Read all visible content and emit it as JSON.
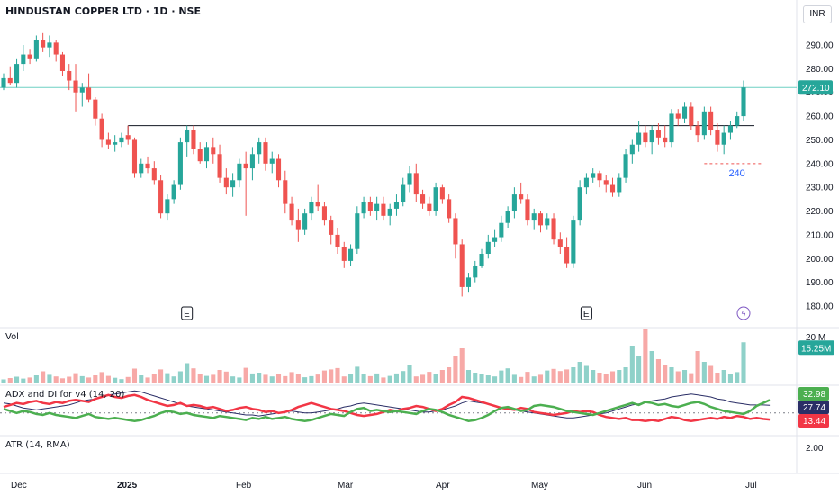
{
  "header": {
    "title": "HINDUSTAN COPPER LTD · 1D · NSE",
    "currency": "INR"
  },
  "chart_data": {
    "type": "candlestick",
    "title": "HINDUSTAN COPPER LTD · 1D · NSE",
    "x_ticks": [
      "Dec",
      "2025",
      "Feb",
      "Mar",
      "Apr",
      "May",
      "Jun",
      "Jul"
    ],
    "y_ticks": [
      "290.00",
      "280.00",
      "270.00",
      "260.00",
      "250.00",
      "240.00",
      "230.00",
      "220.00",
      "210.00",
      "200.00",
      "190.00",
      "180.00"
    ],
    "ylim": [
      175,
      297
    ],
    "last_price": 272.1,
    "last_price_label": "272.10",
    "resistance_level": 256,
    "support_level": 240,
    "support_label": "240",
    "earnings_markers": [
      "E",
      "E"
    ],
    "candles": [
      [
        272,
        278,
        271,
        276
      ],
      [
        276,
        281,
        273,
        274
      ],
      [
        274,
        284,
        272,
        282
      ],
      [
        282,
        290,
        279,
        286
      ],
      [
        286,
        288,
        282,
        284
      ],
      [
        284,
        294,
        283,
        292
      ],
      [
        292,
        295,
        287,
        289
      ],
      [
        289,
        294,
        285,
        291
      ],
      [
        291,
        292,
        283,
        286
      ],
      [
        286,
        287,
        277,
        279
      ],
      [
        279,
        282,
        271,
        275
      ],
      [
        275,
        282,
        262,
        270
      ],
      [
        270,
        274,
        264,
        272
      ],
      [
        272,
        278,
        266,
        267
      ],
      [
        267,
        268,
        256,
        259
      ],
      [
        259,
        261,
        247,
        250
      ],
      [
        250,
        253,
        246,
        248
      ],
      [
        248,
        252,
        245,
        249
      ],
      [
        249,
        253,
        247,
        251
      ],
      [
        252,
        256,
        248,
        250
      ],
      [
        250,
        251,
        234,
        236
      ],
      [
        236,
        242,
        234,
        240
      ],
      [
        240,
        243,
        236,
        238
      ],
      [
        238,
        241,
        231,
        233
      ],
      [
        233,
        235,
        217,
        219
      ],
      [
        219,
        227,
        216,
        225
      ],
      [
        225,
        233,
        223,
        231
      ],
      [
        231,
        251,
        229,
        249
      ],
      [
        249,
        256,
        243,
        254
      ],
      [
        254,
        256,
        244,
        246
      ],
      [
        246,
        249,
        240,
        241
      ],
      [
        241,
        249,
        238,
        247
      ],
      [
        247,
        251,
        240,
        244
      ],
      [
        244,
        248,
        232,
        234
      ],
      [
        234,
        238,
        227,
        230
      ],
      [
        230,
        236,
        226,
        233
      ],
      [
        233,
        242,
        230,
        240
      ],
      [
        240,
        245,
        218,
        238
      ],
      [
        238,
        247,
        233,
        244
      ],
      [
        244,
        251,
        240,
        249
      ],
      [
        249,
        251,
        237,
        240
      ],
      [
        240,
        245,
        236,
        242
      ],
      [
        242,
        244,
        230,
        233
      ],
      [
        233,
        237,
        219,
        223
      ],
      [
        223,
        226,
        214,
        216
      ],
      [
        216,
        221,
        207,
        212
      ],
      [
        212,
        221,
        210,
        219
      ],
      [
        219,
        226,
        216,
        224
      ],
      [
        224,
        231,
        220,
        222
      ],
      [
        222,
        224,
        214,
        216
      ],
      [
        216,
        218,
        206,
        210
      ],
      [
        210,
        213,
        202,
        205
      ],
      [
        205,
        207,
        196,
        199
      ],
      [
        199,
        206,
        197,
        204
      ],
      [
        204,
        222,
        202,
        219
      ],
      [
        219,
        226,
        217,
        224
      ],
      [
        224,
        226,
        218,
        220
      ],
      [
        220,
        226,
        216,
        223
      ],
      [
        223,
        226,
        216,
        218
      ],
      [
        218,
        223,
        214,
        221
      ],
      [
        221,
        227,
        218,
        224
      ],
      [
        224,
        234,
        222,
        231
      ],
      [
        231,
        239,
        228,
        236
      ],
      [
        236,
        240,
        224,
        227
      ],
      [
        227,
        229,
        221,
        223
      ],
      [
        223,
        226,
        218,
        220
      ],
      [
        220,
        232,
        218,
        230
      ],
      [
        230,
        231,
        223,
        225
      ],
      [
        225,
        227,
        215,
        217
      ],
      [
        217,
        219,
        200,
        206
      ],
      [
        206,
        208,
        184,
        188
      ],
      [
        188,
        194,
        186,
        192
      ],
      [
        192,
        199,
        190,
        197
      ],
      [
        197,
        204,
        196,
        202
      ],
      [
        202,
        210,
        200,
        207
      ],
      [
        207,
        212,
        205,
        209
      ],
      [
        209,
        218,
        207,
        215
      ],
      [
        215,
        222,
        213,
        220
      ],
      [
        220,
        230,
        217,
        227
      ],
      [
        227,
        232,
        223,
        225
      ],
      [
        225,
        227,
        214,
        216
      ],
      [
        216,
        221,
        212,
        219
      ],
      [
        219,
        220,
        211,
        214
      ],
      [
        214,
        219,
        212,
        217
      ],
      [
        217,
        219,
        206,
        208
      ],
      [
        208,
        211,
        202,
        205
      ],
      [
        205,
        209,
        196,
        198
      ],
      [
        198,
        218,
        196,
        216
      ],
      [
        216,
        233,
        214,
        230
      ],
      [
        230,
        236,
        227,
        234
      ],
      [
        234,
        238,
        232,
        236
      ],
      [
        236,
        237,
        230,
        233
      ],
      [
        233,
        235,
        228,
        231
      ],
      [
        231,
        234,
        226,
        228
      ],
      [
        228,
        236,
        226,
        234
      ],
      [
        234,
        246,
        232,
        244
      ],
      [
        244,
        250,
        240,
        248
      ],
      [
        248,
        258,
        245,
        253
      ],
      [
        253,
        256,
        247,
        249
      ],
      [
        249,
        256,
        244,
        254
      ],
      [
        254,
        257,
        248,
        251
      ],
      [
        251,
        256,
        247,
        249
      ],
      [
        249,
        263,
        247,
        261
      ],
      [
        261,
        263,
        256,
        259
      ],
      [
        259,
        266,
        257,
        264
      ],
      [
        264,
        266,
        254,
        256
      ],
      [
        256,
        258,
        249,
        252
      ],
      [
        252,
        264,
        250,
        262
      ],
      [
        262,
        264,
        252,
        254
      ],
      [
        254,
        257,
        245,
        248
      ],
      [
        248,
        256,
        244,
        253
      ],
      [
        253,
        258,
        250,
        256
      ],
      [
        256,
        262,
        255,
        260
      ],
      [
        260,
        275,
        258,
        272.1
      ]
    ],
    "volume": {
      "label": "Vol",
      "last_label": "15.25M",
      "scale_label": "20 M",
      "max": 20,
      "values": [
        1.5,
        2,
        2.5,
        1.8,
        2.2,
        3,
        4.5,
        3.2,
        2.6,
        1.9,
        2.5,
        3.8,
        2.7,
        2.2,
        3,
        4.2,
        2.8,
        2.1,
        1.6,
        2.4,
        5.5,
        3,
        2.2,
        3.5,
        5.2,
        3.8,
        2.6,
        4.5,
        7.5,
        5.6,
        3.4,
        2.8,
        3.2,
        5,
        4.4,
        2.6,
        2.2,
        5.8,
        3.7,
        4,
        3.2,
        2.6,
        3.4,
        2.7,
        4.2,
        3.6,
        2.3,
        2.7,
        3.3,
        4.8,
        5.2,
        5.7,
        2.6,
        3.6,
        6.2,
        3.5,
        2.7,
        3.7,
        2.2,
        2.8,
        3.7,
        4.6,
        7,
        2.6,
        3.2,
        4.3,
        3.5,
        5,
        6,
        10,
        13,
        5,
        4,
        3.5,
        3,
        2.6,
        4.8,
        5.6,
        3.2,
        2.4,
        4.3,
        2.6,
        3.2,
        4.8,
        5.4,
        4.6,
        5.2,
        6,
        8,
        6.5,
        5,
        4,
        3.5,
        4.5,
        5,
        6,
        14,
        10,
        20,
        12,
        9,
        7,
        6,
        4.5,
        5,
        3.8,
        12,
        8,
        6.5,
        4,
        5,
        3.5,
        4.2,
        15.25
      ]
    },
    "adx": {
      "label": "ADX and DI for v4 (14, 20)",
      "plus_di_label": "32.98",
      "adx_label": "27.74",
      "minus_di_label": "13.44",
      "threshold": 20,
      "range": [
        0,
        45
      ],
      "plus_di": [
        24,
        22,
        20,
        22,
        21,
        19,
        18,
        20,
        18,
        17,
        16,
        15,
        17,
        19,
        16,
        15,
        14,
        15,
        14,
        13,
        12,
        13,
        15,
        17,
        20,
        22,
        21,
        19,
        20,
        18,
        17,
        16,
        15,
        17,
        16,
        15,
        14,
        13,
        15,
        14,
        16,
        14,
        15,
        16,
        14,
        13,
        12,
        13,
        15,
        17,
        19,
        18,
        17,
        21,
        24,
        25,
        22,
        23,
        22,
        21,
        22,
        21,
        20,
        19,
        22,
        24,
        23,
        21,
        18,
        16,
        14,
        12,
        13,
        15,
        18,
        22,
        25,
        26,
        24,
        22,
        23,
        27,
        28,
        27,
        26,
        24,
        22,
        21,
        20,
        19,
        18,
        20,
        22,
        24,
        26,
        28,
        30,
        28,
        31,
        30,
        28,
        29,
        27,
        26,
        28,
        30,
        31,
        29,
        26,
        24,
        22,
        21,
        20,
        19,
        22,
        27,
        30,
        32.98
      ],
      "minus_di": [
        26,
        28,
        30,
        29,
        31,
        32,
        30,
        29,
        31,
        30,
        32,
        33,
        32,
        31,
        34,
        36,
        38,
        36,
        35,
        37,
        38,
        36,
        33,
        31,
        29,
        27,
        28,
        30,
        27,
        28,
        27,
        25,
        26,
        24,
        22,
        23,
        25,
        26,
        24,
        23,
        21,
        22,
        20,
        21,
        23,
        26,
        28,
        30,
        28,
        26,
        24,
        23,
        22,
        20,
        18,
        17,
        18,
        19,
        21,
        23,
        22,
        24,
        25,
        27,
        26,
        24,
        22,
        24,
        28,
        31,
        36,
        35,
        33,
        31,
        29,
        27,
        25,
        24,
        23,
        25,
        24,
        21,
        20,
        19,
        18,
        19,
        20,
        22,
        21,
        22,
        21,
        18,
        16,
        15,
        14,
        15,
        13,
        13,
        12,
        13,
        12,
        14,
        16,
        15,
        13,
        12,
        13,
        14,
        15,
        14,
        16,
        15,
        17,
        16,
        14,
        15,
        14,
        13.44
      ],
      "adx_line": [
        30,
        29,
        27,
        25,
        24,
        23,
        24,
        25,
        26,
        27,
        28,
        30,
        32,
        33,
        34,
        36,
        38,
        39,
        40,
        41,
        42,
        41,
        39,
        37,
        35,
        33,
        31,
        29,
        27,
        26,
        25,
        24,
        23,
        22,
        21,
        20,
        19,
        18,
        18,
        17,
        18,
        19,
        20,
        21,
        22,
        21,
        20,
        20,
        21,
        22,
        23,
        24,
        26,
        27,
        29,
        30,
        29,
        28,
        27,
        26,
        25,
        24,
        23,
        22,
        21,
        21,
        22,
        23,
        25,
        27,
        30,
        32,
        31,
        30,
        29,
        27,
        25,
        24,
        23,
        22,
        21,
        20,
        19,
        18,
        17,
        16,
        15,
        15,
        16,
        17,
        18,
        19,
        20,
        22,
        24,
        26,
        28,
        29,
        31,
        32,
        33,
        34,
        36,
        37,
        38,
        39,
        38,
        37,
        36,
        34,
        33,
        31,
        30,
        29,
        28,
        28,
        28,
        27.74
      ]
    },
    "atr": {
      "label": "ATR (14, RMA)",
      "tick": "2.00"
    },
    "colors": {
      "up": "#26a69a",
      "down": "#ef5350",
      "vol_up": "#8fd1c9",
      "vol_down": "#f7a9a7",
      "plus_di": "#4caf50",
      "minus_di": "#f23645",
      "adx": "#2a2e66",
      "price_line": "#6fd0c4",
      "level": "#131722"
    }
  }
}
